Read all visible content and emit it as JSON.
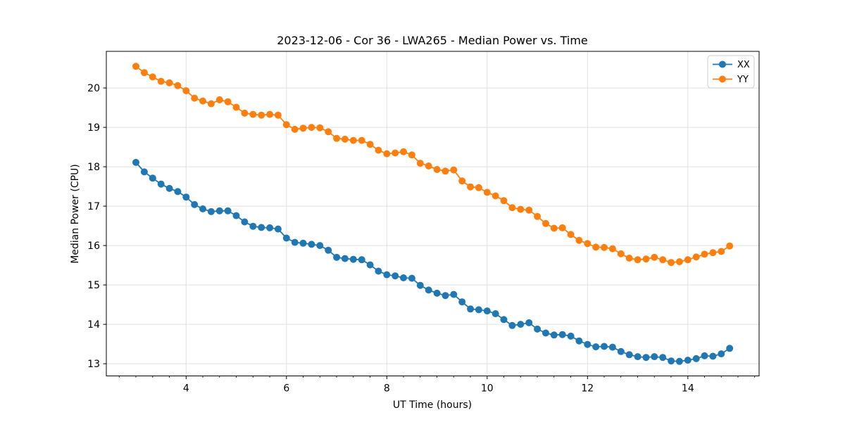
{
  "title": "2023-12-06 - Cor 36 - LWA265 - Median Power vs. Time",
  "chart_data": {
    "type": "line",
    "title": "2023-12-06 - Cor 36 - LWA265 - Median Power vs. Time",
    "xlabel": "UT Time (hours)",
    "ylabel": "Median Power (CPU)",
    "xlim": [
      2.41,
      15.42
    ],
    "ylim": [
      12.69,
      20.93
    ],
    "xticks": [
      4,
      6,
      8,
      10,
      12,
      14
    ],
    "yticks": [
      13,
      14,
      15,
      16,
      17,
      18,
      19,
      20
    ],
    "x_minor_step": 0.3333,
    "grid": true,
    "legend": {
      "position": "upper right",
      "entries": [
        "XX",
        "YY"
      ]
    },
    "x": [
      3.0,
      3.167,
      3.333,
      3.5,
      3.667,
      3.833,
      4.0,
      4.167,
      4.333,
      4.5,
      4.667,
      4.833,
      5.0,
      5.167,
      5.333,
      5.5,
      5.667,
      5.833,
      6.0,
      6.167,
      6.333,
      6.5,
      6.667,
      6.833,
      7.0,
      7.167,
      7.333,
      7.5,
      7.667,
      7.833,
      8.0,
      8.167,
      8.333,
      8.5,
      8.667,
      8.833,
      9.0,
      9.167,
      9.333,
      9.5,
      9.667,
      9.833,
      10.0,
      10.167,
      10.333,
      10.5,
      10.667,
      10.833,
      11.0,
      11.167,
      11.333,
      11.5,
      11.667,
      11.833,
      12.0,
      12.167,
      12.333,
      12.5,
      12.667,
      12.833,
      13.0,
      13.167,
      13.333,
      13.5,
      13.667,
      13.833,
      14.0,
      14.167,
      14.333,
      14.5,
      14.667,
      14.833
    ],
    "series": [
      {
        "name": "XX",
        "color": "#1f77b4",
        "values": [
          18.11,
          17.87,
          17.71,
          17.56,
          17.45,
          17.37,
          17.23,
          17.04,
          16.93,
          16.86,
          16.88,
          16.88,
          16.76,
          16.6,
          16.49,
          16.46,
          16.45,
          16.42,
          16.19,
          16.08,
          16.06,
          16.03,
          16.0,
          15.88,
          15.7,
          15.67,
          15.65,
          15.64,
          15.51,
          15.35,
          15.26,
          15.23,
          15.18,
          15.17,
          14.99,
          14.87,
          14.79,
          14.73,
          14.76,
          14.57,
          14.39,
          14.37,
          14.34,
          14.27,
          14.12,
          13.97,
          14.0,
          14.04,
          13.88,
          13.78,
          13.73,
          13.74,
          13.7,
          13.58,
          13.49,
          13.43,
          13.44,
          13.42,
          13.31,
          13.23,
          13.18,
          13.16,
          13.18,
          13.16,
          13.07,
          13.06,
          13.09,
          13.13,
          13.2,
          13.19,
          13.25,
          13.39
        ]
      },
      {
        "name": "YY",
        "color": "#ff7f0e",
        "values": [
          20.55,
          20.39,
          20.28,
          20.17,
          20.13,
          20.06,
          19.93,
          19.74,
          19.67,
          19.6,
          19.7,
          19.65,
          19.51,
          19.36,
          19.33,
          19.31,
          19.33,
          19.31,
          19.07,
          18.95,
          18.98,
          19.0,
          18.99,
          18.89,
          18.72,
          18.7,
          18.67,
          18.67,
          18.57,
          18.42,
          18.33,
          18.35,
          18.38,
          18.3,
          18.09,
          18.02,
          17.93,
          17.89,
          17.92,
          17.64,
          17.49,
          17.47,
          17.35,
          17.26,
          17.14,
          16.96,
          16.92,
          16.9,
          16.74,
          16.56,
          16.44,
          16.45,
          16.28,
          16.13,
          16.05,
          15.96,
          15.95,
          15.92,
          15.79,
          15.68,
          15.64,
          15.66,
          15.7,
          15.64,
          15.57,
          15.59,
          15.64,
          15.71,
          15.78,
          15.82,
          15.85,
          15.99
        ]
      }
    ],
    "style": {
      "grid_color": "#e0e0e0",
      "spine_color": "#000000",
      "background": "#ffffff",
      "legend_border": "#cccccc"
    }
  }
}
